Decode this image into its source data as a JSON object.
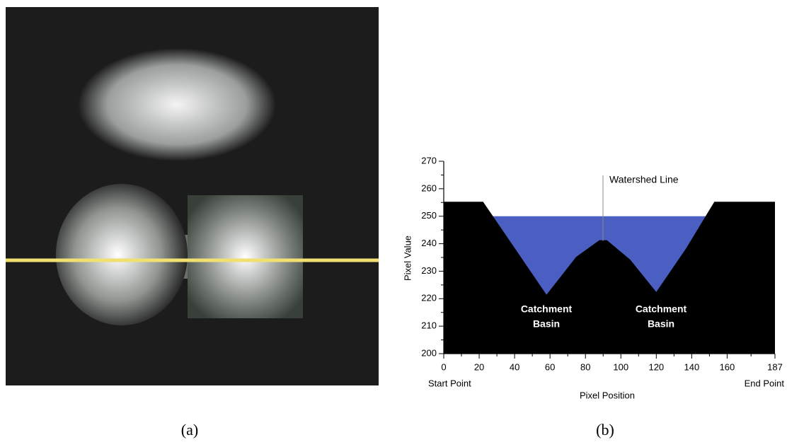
{
  "figure_labels": [
    "(a)",
    "(b)"
  ],
  "chart_data": {
    "type": "area",
    "x_label": "Pixel Position",
    "y_label": "Pixel Value",
    "x_end_labels": [
      "Start Point",
      "End Point"
    ],
    "annotations": [
      {
        "lines": [
          "Watershed Line"
        ]
      },
      {
        "lines": [
          "Catchment",
          "Basin"
        ]
      },
      {
        "lines": [
          "Catchment",
          "Basin"
        ]
      }
    ],
    "x": [
      0,
      22,
      40,
      58,
      75,
      88,
      92,
      105,
      120,
      137,
      153,
      187
    ],
    "values": [
      255,
      255,
      238,
      221,
      235,
      241,
      241,
      234,
      222,
      238,
      255,
      255
    ],
    "color": "#000000",
    "water_level": 250,
    "water_color": "#4a5fc1",
    "xlim": [
      0,
      187
    ],
    "xticks": [
      0,
      20,
      40,
      60,
      80,
      100,
      120,
      140,
      160,
      187
    ],
    "ylim": [
      200,
      270
    ],
    "yticks": [
      200,
      210,
      220,
      230,
      240,
      250,
      260,
      270
    ]
  }
}
